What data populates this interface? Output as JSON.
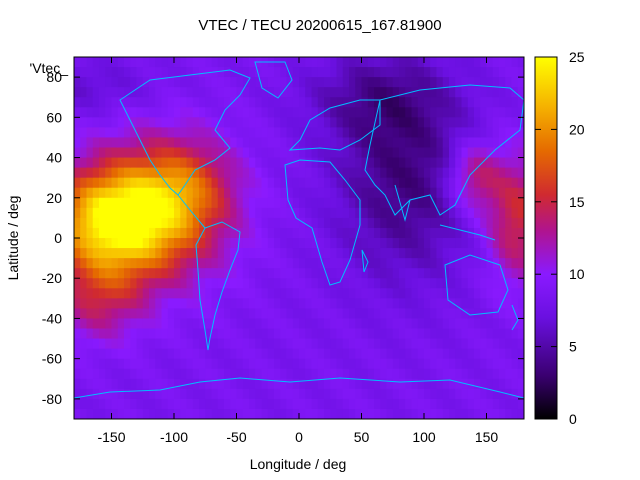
{
  "chart_data": {
    "type": "heatmap",
    "title": "VTEC / TECU 20200615_167.81900",
    "xlabel": "Longitude / deg",
    "ylabel": "Latitude / deg",
    "xlim": [
      -180,
      180
    ],
    "ylim": [
      -90,
      90
    ],
    "x_ticks": [
      "-150",
      "-100",
      "-50",
      "0",
      "50",
      "100",
      "150"
    ],
    "y_ticks": [
      "80",
      "60",
      "40",
      "20",
      "0",
      "-20",
      "-40",
      "-60",
      "-80"
    ],
    "colorbar": {
      "range": [
        0,
        25
      ],
      "ticks": [
        "0",
        "5",
        "10",
        "15",
        "20",
        "25"
      ],
      "palette": [
        "#000000",
        "#4b0082",
        "#7c1fff",
        "#c0167a",
        "#e34a00",
        "#f5a800",
        "#ffff00"
      ]
    },
    "legend_label": "'Vtec_",
    "grid": false,
    "overlay": "coastlines",
    "overlay_color": "#00bfff"
  }
}
